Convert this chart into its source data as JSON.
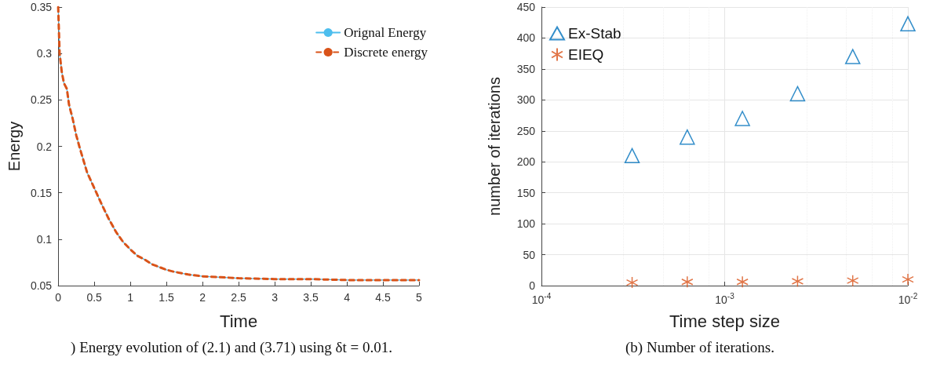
{
  "chart_data": [
    {
      "type": "line",
      "xlabel": "Time",
      "ylabel": "Energy",
      "xlim": [
        0,
        5
      ],
      "xticks": [
        0,
        0.5,
        1,
        1.5,
        2,
        2.5,
        3,
        3.5,
        4,
        4.5,
        5
      ],
      "ylim": [
        0.05,
        0.35
      ],
      "yticks": [
        0.05,
        0.1,
        0.15,
        0.2,
        0.25,
        0.3,
        0.35
      ],
      "grid": false,
      "legend": "top right",
      "marker": "none",
      "x": [
        0,
        0.02,
        0.05,
        0.08,
        0.12,
        0.15,
        0.2,
        0.25,
        0.3,
        0.35,
        0.4,
        0.5,
        0.6,
        0.7,
        0.8,
        0.9,
        1.0,
        1.1,
        1.2,
        1.3,
        1.4,
        1.5,
        1.6,
        1.8,
        2.0,
        2.25,
        2.5,
        3,
        3.5,
        4,
        4.5,
        5
      ],
      "series": [
        {
          "name": "Orignal Energy",
          "color": "#4dbeee",
          "line_style": "solid",
          "values": [
            0.35,
            0.3,
            0.28,
            0.268,
            0.262,
            0.245,
            0.23,
            0.212,
            0.198,
            0.185,
            0.172,
            0.155,
            0.138,
            0.122,
            0.108,
            0.097,
            0.089,
            0.082,
            0.078,
            0.073,
            0.07,
            0.067,
            0.065,
            0.062,
            0.06,
            0.059,
            0.058,
            0.057,
            0.057,
            0.056,
            0.056,
            0.056
          ]
        },
        {
          "name": "Discrete energy",
          "color": "#d95319",
          "line_style": "dashed",
          "values": [
            0.35,
            0.3,
            0.28,
            0.268,
            0.262,
            0.245,
            0.23,
            0.212,
            0.198,
            0.185,
            0.172,
            0.155,
            0.138,
            0.122,
            0.108,
            0.097,
            0.089,
            0.082,
            0.078,
            0.073,
            0.07,
            0.067,
            0.065,
            0.062,
            0.06,
            0.059,
            0.058,
            0.057,
            0.057,
            0.056,
            0.056,
            0.056
          ]
        }
      ],
      "annotations": [
        ") Energy evolution of (2.1) and (3.71) using δt = 0.01."
      ]
    },
    {
      "type": "scatter",
      "xlabel": "Time step size",
      "ylabel": "number of iterations",
      "log": "x",
      "xlim": [
        0.0001,
        0.01
      ],
      "xticks": [
        {
          "value": 0.0001,
          "label": "10$^{-4}$"
        },
        {
          "value": 0.001,
          "label": "10$^{-3}$"
        },
        {
          "value": 0.01,
          "label": "10$^{-2}$"
        }
      ],
      "ylim": [
        0,
        450
      ],
      "yticks": [
        0,
        50,
        100,
        150,
        200,
        250,
        300,
        350,
        400,
        450
      ],
      "grid": true,
      "legend": "top left",
      "x": [
        0.0003125,
        0.000625,
        0.00125,
        0.0025,
        0.005,
        0.01
      ],
      "series": [
        {
          "name": "Ex-Stab",
          "color": "#0072bd",
          "marker": "triangle",
          "values": [
            210,
            240,
            270,
            310,
            370,
            423
          ]
        },
        {
          "name": "EIEQ",
          "color": "#d95319",
          "marker": "cross",
          "values": [
            5,
            6,
            6,
            7,
            8,
            10
          ]
        }
      ],
      "annotations": [
        "(b) Number of iterations."
      ]
    }
  ]
}
